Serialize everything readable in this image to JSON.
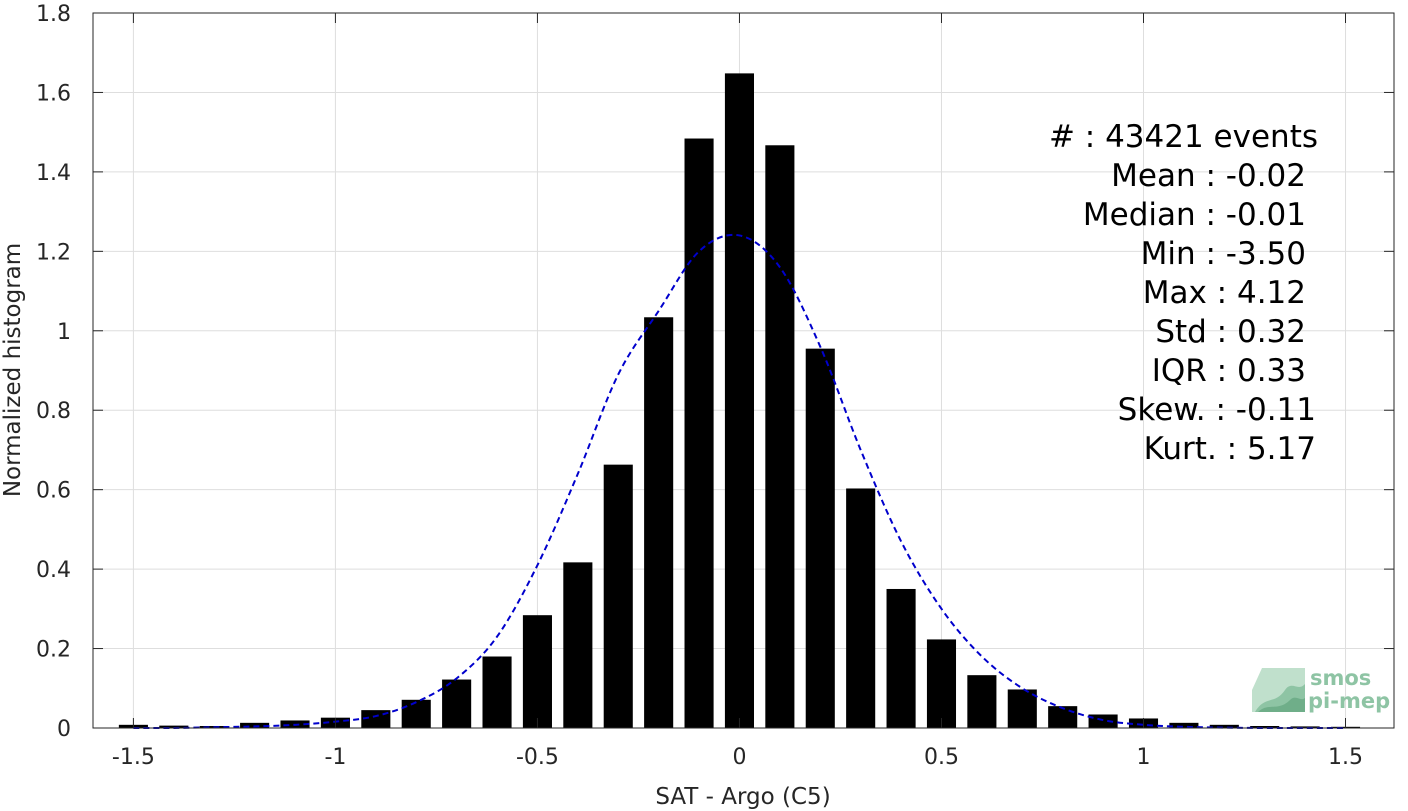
{
  "chart_data": {
    "type": "bar",
    "xlabel": "SAT - Argo (C5)",
    "ylabel": "Normalized histogram",
    "xlim": [
      -1.6,
      1.62
    ],
    "ylim": [
      0,
      1.8
    ],
    "xticks": [
      -1.5,
      -1,
      -0.5,
      0,
      0.5,
      1,
      1.5
    ],
    "xtick_labels": [
      "-1.5",
      "-1",
      "-0.5",
      "0",
      "0.5",
      "1",
      "1.5"
    ],
    "yticks": [
      0,
      0.2,
      0.4,
      0.6,
      0.8,
      1,
      1.2,
      1.4,
      1.6,
      1.8
    ],
    "ytick_labels": [
      "0",
      "0.2",
      "0.4",
      "0.6",
      "0.8",
      "1",
      "1.2",
      "1.4",
      "1.6",
      "1.8"
    ],
    "grid": true,
    "bar_width": 0.072,
    "bar_color": "#000000",
    "bars": {
      "x": [
        -1.5,
        -1.4,
        -1.3,
        -1.2,
        -1.1,
        -1.0,
        -0.9,
        -0.8,
        -0.7,
        -0.6,
        -0.5,
        -0.4,
        -0.3,
        -0.2,
        -0.1,
        0.0,
        0.1,
        0.2,
        0.3,
        0.4,
        0.5,
        0.6,
        0.7,
        0.8,
        0.9,
        1.0,
        1.1,
        1.2,
        1.3,
        1.4,
        1.5
      ],
      "values": [
        0.008,
        0.006,
        0.005,
        0.013,
        0.019,
        0.026,
        0.045,
        0.071,
        0.122,
        0.18,
        0.284,
        0.417,
        0.663,
        1.034,
        1.484,
        1.648,
        1.467,
        0.955,
        0.603,
        0.35,
        0.223,
        0.133,
        0.097,
        0.055,
        0.034,
        0.024,
        0.013,
        0.008,
        0.005,
        0.004,
        0.003
      ]
    },
    "fit_curve": {
      "style": "dashed",
      "color": "#0000cc",
      "x": [
        -1.5,
        -1.4,
        -1.3,
        -1.2,
        -1.1,
        -1.0,
        -0.9,
        -0.8,
        -0.7,
        -0.6,
        -0.5,
        -0.4,
        -0.3,
        -0.2,
        -0.1,
        0.0,
        0.1,
        0.2,
        0.3,
        0.4,
        0.5,
        0.6,
        0.7,
        0.8,
        0.9,
        1.0,
        1.1,
        1.2,
        1.3,
        1.4,
        1.5
      ],
      "values": [
        0.0,
        0.0,
        0.002,
        0.004,
        0.008,
        0.016,
        0.03,
        0.065,
        0.125,
        0.23,
        0.41,
        0.64,
        0.89,
        1.05,
        1.2,
        1.24,
        1.16,
        0.96,
        0.7,
        0.47,
        0.3,
        0.18,
        0.1,
        0.05,
        0.02,
        0.008,
        0.003,
        0.001,
        0.0,
        0.0,
        0.0
      ]
    }
  },
  "stats": [
    {
      "key": "events",
      "text": "#  : 43421 events"
    },
    {
      "key": "mean",
      "text": "Mean : -0.02"
    },
    {
      "key": "median",
      "text": "Median : -0.01"
    },
    {
      "key": "min",
      "text": "Min : -3.50"
    },
    {
      "key": "max",
      "text": "Max : 4.12"
    },
    {
      "key": "std",
      "text": "Std : 0.32"
    },
    {
      "key": "iqr",
      "text": "IQR : 0.33"
    },
    {
      "key": "skew",
      "text": "Skew. : -0.11"
    },
    {
      "key": "kurt",
      "text": "Kurt. : 5.17"
    }
  ],
  "logo": {
    "line1": "smos",
    "line2": "pi-mep",
    "color": "#8ec4a4"
  }
}
